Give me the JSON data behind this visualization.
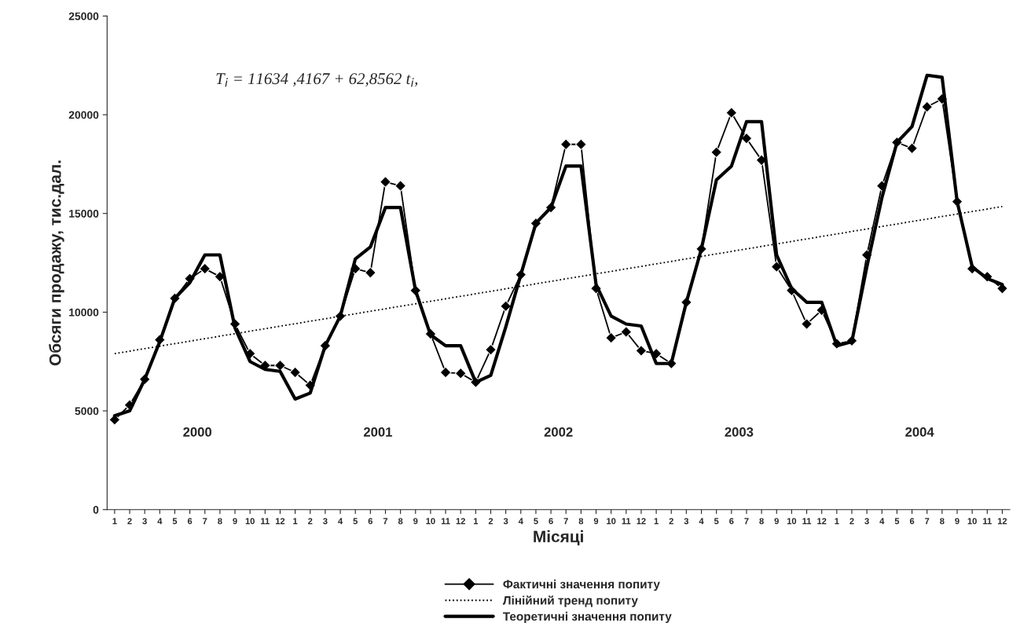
{
  "chart_data": {
    "type": "line",
    "xlabel": "Місяці",
    "ylabel": "Обсяги продажу, тис.дал.",
    "categories": [
      "1",
      "2",
      "3",
      "4",
      "5",
      "6",
      "7",
      "8",
      "9",
      "10",
      "11",
      "12",
      "1",
      "2",
      "3",
      "4",
      "5",
      "6",
      "7",
      "8",
      "9",
      "10",
      "11",
      "12",
      "1",
      "2",
      "3",
      "4",
      "5",
      "6",
      "7",
      "8",
      "9",
      "10",
      "11",
      "12",
      "1",
      "2",
      "3",
      "4",
      "5",
      "6",
      "7",
      "8",
      "9",
      "10",
      "11",
      "12",
      "1",
      "2",
      "3",
      "4",
      "5",
      "6",
      "7",
      "8",
      "9",
      "10",
      "11",
      "12"
    ],
    "series": [
      {
        "name": "Фактичні значення попиту",
        "color": "#000000",
        "marker": "diamond",
        "line_style": "solid",
        "values": [
          4550,
          5300,
          6600,
          8600,
          10700,
          11700,
          12200,
          11800,
          9400,
          7900,
          7300,
          7300,
          6950,
          6300,
          8300,
          9800,
          12200,
          12000,
          16600,
          16400,
          11100,
          8900,
          6950,
          6900,
          6450,
          8100,
          10300,
          11900,
          14500,
          15300,
          18500,
          18500,
          11200,
          8700,
          9000,
          8050,
          7900,
          7400,
          10500,
          13200,
          18100,
          20100,
          18800,
          17700,
          12300,
          11100,
          9400,
          10100,
          8400,
          8550,
          12900,
          16400,
          18600,
          18300,
          20400,
          20800,
          15600,
          12200,
          11800,
          11200
        ]
      },
      {
        "name": "Лінійний тренд попиту",
        "color": "#000000",
        "marker": "none",
        "line_style": "dotted",
        "values": [
          7900,
          null,
          null,
          null,
          null,
          null,
          null,
          null,
          null,
          null,
          null,
          null,
          null,
          null,
          null,
          null,
          null,
          null,
          null,
          null,
          null,
          null,
          null,
          null,
          null,
          null,
          null,
          null,
          null,
          null,
          null,
          null,
          null,
          null,
          null,
          null,
          null,
          null,
          null,
          null,
          null,
          null,
          null,
          null,
          null,
          null,
          null,
          null,
          null,
          null,
          null,
          null,
          null,
          null,
          null,
          null,
          null,
          null,
          null,
          15350
        ]
      },
      {
        "name": "Теоретичні значення попиту",
        "color": "#000000",
        "marker": "none",
        "line_style": "solid",
        "values": [
          4750,
          5000,
          6600,
          8500,
          10700,
          11500,
          12900,
          12900,
          9200,
          7500,
          7100,
          7000,
          5600,
          5900,
          8300,
          9800,
          12700,
          13300,
          15300,
          15300,
          11100,
          8850,
          8300,
          8300,
          6450,
          6800,
          9250,
          11900,
          14500,
          15300,
          17400,
          17400,
          11400,
          9800,
          9400,
          9300,
          7400,
          7400,
          10500,
          13200,
          16700,
          17400,
          19650,
          19650,
          12900,
          11200,
          10500,
          10500,
          8300,
          8500,
          12300,
          15800,
          18600,
          19400,
          22000,
          21900,
          15600,
          12300,
          11700,
          11400
        ]
      }
    ],
    "ylim": [
      0,
      25000
    ],
    "yticks": [
      0,
      5000,
      10000,
      15000,
      20000,
      25000
    ],
    "annotations": [
      "2000",
      "2001",
      "2002",
      "2003",
      "2004",
      "T$_{i}$ = 11634 ,4167 + 62,8562 t$_{i}$,"
    ],
    "grid": false,
    "legend": "bottom"
  }
}
